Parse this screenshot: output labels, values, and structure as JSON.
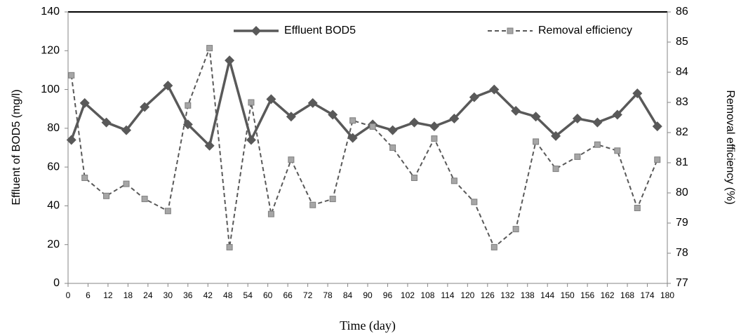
{
  "chart_data": {
    "type": "line",
    "xlabel": "Time (day)",
    "ylabel": "Effluent of BOD5 (mg/l)",
    "y2label": "Removal efficiency (%)",
    "x": [
      1,
      5,
      11.5,
      17.5,
      23,
      30,
      36,
      42.5,
      48.5,
      55,
      61,
      67,
      73.5,
      79.5,
      85.5,
      91.5,
      97.5,
      104,
      110,
      116,
      122,
      128,
      134.5,
      140.5,
      146.5,
      153,
      159,
      165,
      171,
      177
    ],
    "series": [
      {
        "name": "Effluent BOD5",
        "color": "#595959",
        "marker": "diamond",
        "dash": false,
        "values": [
          74,
          93,
          83,
          79,
          91,
          102,
          82,
          71,
          115,
          74,
          95,
          86,
          93,
          87,
          75,
          82,
          79,
          83,
          81,
          85,
          96,
          100,
          89,
          86,
          76,
          85,
          83,
          87,
          98,
          81
        ]
      },
      {
        "name": "Removal efficiency",
        "color": "#595959",
        "marker": "square",
        "dash": true,
        "axis": "y2",
        "values": [
          83.9,
          80.5,
          79.9,
          80.3,
          79.8,
          79.4,
          82.9,
          84.8,
          78.2,
          83.0,
          79.3,
          81.1,
          79.6,
          79.8,
          82.4,
          82.2,
          81.5,
          80.5,
          81.8,
          80.4,
          79.7,
          78.2,
          78.8,
          81.7,
          80.8,
          81.2,
          81.6,
          81.4,
          79.5,
          81.1
        ]
      }
    ],
    "xlim": [
      0,
      180
    ],
    "xticks": [
      0,
      6,
      12,
      18,
      24,
      30,
      36,
      42,
      48,
      54,
      60,
      66,
      72,
      78,
      84,
      90,
      96,
      102,
      108,
      114,
      120,
      126,
      132,
      138,
      144,
      150,
      156,
      162,
      168,
      174,
      180
    ],
    "ylim": [
      0,
      140
    ],
    "yticks": [
      0,
      20,
      40,
      60,
      80,
      100,
      120,
      140
    ],
    "y2lim": [
      77,
      86
    ],
    "y2ticks": [
      77,
      78,
      79,
      80,
      81,
      82,
      83,
      84,
      85,
      86
    ],
    "grid": false,
    "legend": "top"
  }
}
